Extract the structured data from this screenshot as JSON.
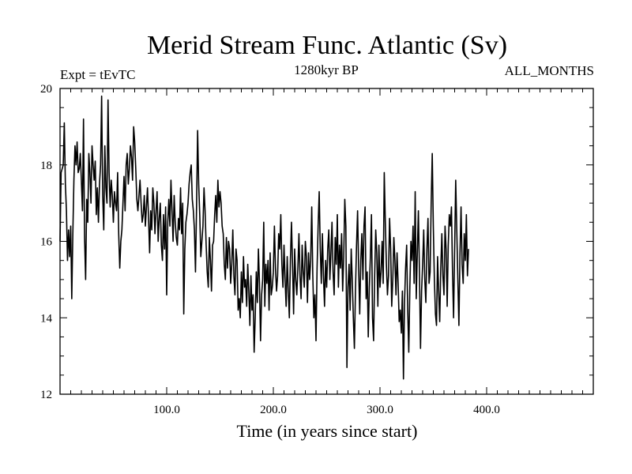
{
  "chart_data": {
    "type": "line",
    "title": "Merid Stream Func. Atlantic (Sv)",
    "subtitle_left": "Expt = tEvTC",
    "subtitle_center": "1280kyr BP",
    "subtitle_right": "ALL_MONTHS",
    "xlabel": "Time (in years since start)",
    "ylabel": "",
    "xlim": [
      0,
      500
    ],
    "ylim": [
      12,
      20
    ],
    "x_ticks": [
      100,
      200,
      300,
      400
    ],
    "x_tick_labels": [
      "100.0",
      "200.0",
      "300.0",
      "400.0"
    ],
    "y_ticks": [
      12,
      14,
      16,
      18,
      20
    ],
    "y_tick_labels": [
      "12",
      "14",
      "16",
      "18",
      "20"
    ],
    "grid": false,
    "line_color": "#000000",
    "series": [
      {
        "name": "Merid Stream Func. Atlantic",
        "x_start": 0,
        "x_step": 1,
        "values": [
          16.0,
          17.8,
          17.9,
          18.0,
          19.1,
          17.5,
          16.8,
          15.5,
          16.3,
          15.6,
          16.4,
          14.5,
          16.2,
          17.6,
          18.5,
          18.0,
          18.6,
          17.8,
          17.9,
          18.3,
          17.6,
          16.8,
          19.2,
          16.1,
          15.0,
          17.1,
          16.5,
          18.3,
          17.8,
          17.0,
          18.5,
          18.0,
          17.6,
          18.1,
          16.7,
          17.4,
          16.5,
          17.5,
          18.0,
          19.8,
          17.2,
          16.3,
          18.5,
          17.4,
          17.0,
          19.7,
          17.8,
          16.9,
          17.6,
          17.2,
          16.5,
          17.3,
          17.0,
          16.8,
          17.8,
          16.2,
          15.3,
          16.0,
          16.3,
          17.0,
          17.7,
          16.8,
          18.0,
          18.3,
          17.5,
          17.9,
          18.5,
          18.2,
          17.6,
          19.0,
          18.6,
          17.9,
          17.1,
          16.8,
          17.2,
          17.6,
          17.0,
          16.5,
          16.7,
          17.2,
          16.4,
          16.9,
          17.4,
          16.6,
          15.7,
          16.8,
          16.3,
          17.4,
          17.0,
          16.2,
          16.8,
          17.3,
          16.0,
          16.6,
          17.0,
          15.9,
          15.5,
          16.7,
          15.8,
          16.9,
          14.6,
          16.5,
          17.1,
          16.4,
          17.6,
          16.8,
          16.0,
          17.2,
          16.5,
          16.1,
          15.9,
          16.6,
          16.3,
          17.4,
          16.2,
          17.0,
          14.1,
          15.8,
          16.5,
          16.7,
          17.0,
          17.5,
          17.8,
          18.0,
          17.1,
          16.8,
          16.3,
          15.2,
          16.9,
          18.9,
          17.5,
          16.7,
          15.6,
          16.0,
          16.4,
          17.4,
          16.8,
          15.9,
          15.2,
          14.8,
          16.1,
          15.5,
          14.7,
          15.9,
          16.0,
          16.7,
          17.2,
          16.5,
          17.6,
          16.9,
          17.3,
          17.0,
          16.4,
          16.2,
          15.4,
          15.0,
          16.1,
          15.3,
          16.0,
          15.8,
          14.9,
          15.4,
          16.3,
          15.1,
          14.6,
          15.8,
          15.5,
          14.2,
          14.5,
          14.0,
          15.2,
          14.4,
          15.6,
          14.8,
          15.0,
          14.3,
          15.4,
          14.7,
          13.8,
          15.1,
          14.2,
          14.6,
          13.1,
          14.0,
          15.2,
          14.4,
          15.8,
          14.9,
          13.4,
          14.6,
          15.0,
          16.5,
          14.3,
          15.4,
          14.9,
          15.5,
          14.2,
          15.7,
          14.6,
          14.8,
          15.2,
          16.4,
          15.3,
          14.7,
          15.1,
          16.2,
          15.8,
          16.7,
          15.4,
          14.8,
          15.9,
          15.0,
          14.3,
          15.6,
          14.7,
          14.0,
          15.5,
          16.5,
          15.4,
          14.1,
          15.8,
          15.0,
          14.6,
          15.3,
          16.2,
          15.1,
          14.5,
          15.9,
          15.2,
          14.8,
          16.0,
          15.6,
          14.4,
          15.7,
          15.0,
          15.5,
          16.9,
          15.1,
          14.0,
          14.6,
          13.4,
          15.3,
          16.4,
          17.3,
          15.8,
          14.9,
          16.2,
          15.1,
          14.3,
          15.5,
          14.8,
          15.8,
          16.3,
          15.0,
          15.7,
          16.5,
          15.2,
          14.6,
          16.1,
          15.4,
          16.7,
          14.8,
          15.9,
          15.3,
          16.2,
          14.7,
          15.6,
          17.1,
          16.4,
          12.7,
          14.8,
          15.4,
          14.2,
          15.8,
          15.0,
          14.0,
          13.2,
          14.7,
          15.9,
          16.8,
          15.3,
          14.1,
          15.5,
          16.2,
          15.0,
          16.4,
          16.9,
          14.5,
          15.2,
          13.5,
          14.8,
          15.6,
          16.7,
          14.0,
          13.4,
          15.1,
          16.3,
          15.7,
          14.3,
          15.9,
          14.8,
          15.2,
          16.0,
          14.9,
          17.8,
          16.5,
          15.4,
          14.6,
          15.1,
          16.6,
          15.8,
          14.3,
          15.0,
          16.1,
          15.5,
          14.6,
          15.7,
          14.9,
          13.9,
          14.2,
          13.6,
          14.7,
          12.4,
          14.4,
          15.3,
          15.9,
          14.2,
          13.1,
          14.8,
          16.0,
          15.5,
          16.4,
          14.9,
          17.3,
          14.5,
          15.7,
          16.8,
          15.2,
          13.2,
          14.7,
          15.4,
          16.3,
          15.0,
          14.4,
          15.8,
          16.6,
          14.9,
          15.2,
          17.0,
          18.3,
          16.4,
          15.0,
          14.1,
          13.8,
          15.6,
          14.7,
          13.9,
          15.3,
          16.2,
          15.1,
          14.6,
          16.4,
          15.8,
          14.3,
          15.9,
          16.7,
          16.4,
          16.9,
          15.2,
          14.0,
          15.8,
          17.6,
          16.3,
          15.0,
          13.8,
          15.7,
          16.9,
          15.4,
          14.9,
          16.2,
          15.5,
          16.7,
          15.1,
          15.8
        ]
      }
    ]
  }
}
